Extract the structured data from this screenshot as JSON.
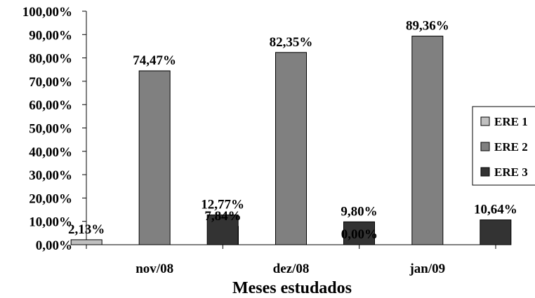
{
  "chart_data": {
    "type": "bar",
    "categories": [
      "nov/08",
      "dez/08",
      "jan/09"
    ],
    "series": [
      {
        "name": "ERE 1",
        "color": "#c0c0c0",
        "values": [
          2.13,
          7.84,
          0.0
        ],
        "labels": [
          "2,13%",
          "7,84%",
          "0,00%"
        ]
      },
      {
        "name": "ERE 2",
        "color": "#808080",
        "values": [
          74.47,
          82.35,
          89.36
        ],
        "labels": [
          "74,47%",
          "82,35%",
          "89,36%"
        ]
      },
      {
        "name": "ERE 3",
        "color": "#333333",
        "values": [
          12.77,
          9.8,
          10.64
        ],
        "labels": [
          "12,77%",
          "9,80%",
          "10,64%"
        ]
      }
    ],
    "ylim": [
      0,
      100
    ],
    "yticks": [
      "0,00%",
      "10,00%",
      "20,00%",
      "30,00%",
      "40,00%",
      "50,00%",
      "60,00%",
      "70,00%",
      "80,00%",
      "90,00%",
      "100,00%"
    ],
    "xlabel": "Meses estudados",
    "ylabel": "",
    "title": "",
    "grid": false,
    "legend": "right"
  }
}
